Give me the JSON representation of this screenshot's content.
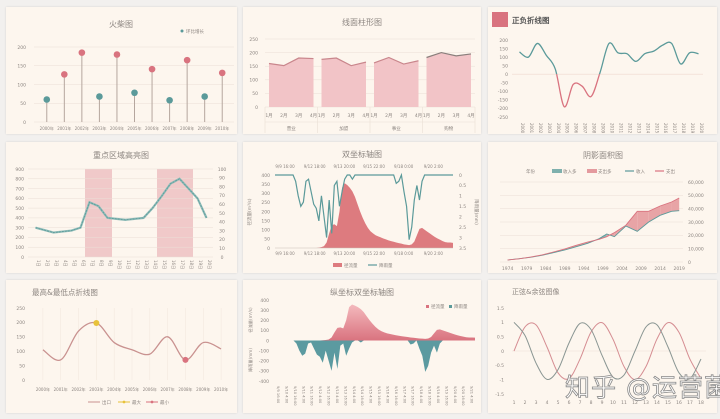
{
  "colors": {
    "pink": "#d9737f",
    "teal": "#5b9a9a",
    "area": "#f2c4c7",
    "grid": "#eadfd6",
    "text": "#8c8580",
    "gold": "#e8c23a"
  },
  "watermark": "知乎 @运营菌",
  "charts": [
    {
      "type": "bar",
      "title": "火柴图",
      "legend": "环比增长",
      "categories": [
        "2000年",
        "2001年",
        "2002年",
        "2003年",
        "2004年",
        "2005年",
        "2006年",
        "2007年",
        "2008年",
        "2009年",
        "2010年"
      ],
      "values": [
        60,
        127,
        185,
        68,
        180,
        78,
        141,
        58,
        165,
        68,
        131
      ],
      "ylim": [
        0,
        200
      ],
      "yticks": [
        0,
        50,
        100,
        150,
        200
      ]
    },
    {
      "type": "area",
      "title": "线面柱形图",
      "groups": [
        "营业",
        "加盟",
        "事业",
        "购物"
      ],
      "months": [
        "1月",
        "2月",
        "3月",
        "4月"
      ],
      "values": [
        [
          160,
          152,
          180,
          178
        ],
        [
          175,
          180,
          152,
          165
        ],
        [
          162,
          182,
          158,
          170
        ],
        [
          182,
          200,
          188,
          195
        ]
      ],
      "ylim": [
        0,
        250
      ],
      "yticks": [
        0,
        50,
        100,
        150,
        200,
        250
      ]
    },
    {
      "type": "line",
      "title": "正负折线图",
      "categories": [
        "2000",
        "2001",
        "2002",
        "2003",
        "2004",
        "2005",
        "2006",
        "2007",
        "2008",
        "2009",
        "2010",
        "2011",
        "2012",
        "2013",
        "2014",
        "2015",
        "2016",
        "2017",
        "2018",
        "2019",
        "2020"
      ],
      "values": [
        130,
        100,
        180,
        110,
        30,
        -190,
        -60,
        -70,
        -130,
        10,
        180,
        125,
        120,
        75,
        120,
        135,
        170,
        180,
        60,
        125,
        120
      ],
      "ylim": [
        -250,
        200
      ],
      "yticks": [
        -250,
        -200,
        -150,
        -100,
        -50,
        0,
        50,
        100,
        150,
        200
      ]
    },
    {
      "type": "line",
      "title": "重点区域高亮图",
      "categories": [
        "1日",
        "2日",
        "3日",
        "4日",
        "5日",
        "6日",
        "7日",
        "8日",
        "9日",
        "10日",
        "11日",
        "12日",
        "13日",
        "14日",
        "15日",
        "16日",
        "17日",
        "18日",
        "19日",
        "20日"
      ],
      "values": [
        300,
        275,
        250,
        260,
        270,
        300,
        560,
        520,
        400,
        390,
        380,
        390,
        400,
        500,
        620,
        750,
        800,
        700,
        600,
        400
      ],
      "highlights": [
        [
          6,
          8
        ],
        [
          14,
          17
        ]
      ],
      "ylim": [
        0,
        900
      ],
      "yticks": [
        0,
        100,
        200,
        300,
        400,
        500,
        600,
        700,
        800,
        900
      ],
      "y2ticks": [
        0,
        10,
        20,
        30,
        40,
        50,
        60,
        70,
        80,
        90,
        100
      ]
    },
    {
      "type": "area",
      "title": "双坐标轴图",
      "xticks": [
        "9/9 16:00",
        "9/12 18:00",
        "9/13 20:00",
        "9/15 22:00",
        "9/18 0:00",
        "9/20 2:00"
      ],
      "ylabel": "径流量(m³/s)",
      "y2label": "降雨量(mm)",
      "legend": [
        "径流量",
        "降雨量"
      ],
      "yticks": [
        0,
        50,
        100,
        150,
        200,
        250,
        300,
        350,
        400
      ],
      "y2ticks": [
        0,
        0.5,
        1,
        1.5,
        2,
        2.5,
        3,
        3.5
      ],
      "runoff": [
        0,
        0,
        0,
        0,
        0,
        0,
        0,
        0,
        0,
        0,
        0,
        0,
        0,
        0,
        0,
        0,
        0,
        2,
        5,
        10,
        30,
        80,
        125,
        130,
        120,
        200,
        330,
        355,
        345,
        330,
        310,
        280,
        240,
        200,
        165,
        135,
        110,
        92,
        80,
        70,
        64,
        58,
        52,
        47,
        42,
        38,
        34,
        30,
        27,
        24,
        20,
        18,
        16,
        20,
        35,
        70,
        105,
        110,
        100,
        90,
        80,
        70,
        60,
        52,
        45,
        38,
        32,
        30,
        30,
        28
      ],
      "rainfall": [
        0,
        0,
        0,
        0,
        0,
        0,
        0,
        0,
        0.3,
        1.0,
        1.5,
        1.3,
        0.3,
        0.2,
        0.8,
        1.4,
        1.6,
        2.2,
        1.0,
        2.0,
        3.0,
        1.2,
        2.8,
        0.5,
        0.3,
        1.5,
        0.8,
        0.2,
        0,
        0,
        0.2,
        0,
        0,
        0,
        0,
        0,
        0,
        0,
        0,
        0,
        0,
        0,
        0,
        0,
        0,
        0,
        0,
        0.4,
        0.3,
        0,
        0.8,
        1.5,
        3.1,
        2.5,
        1.2,
        0.5,
        1.2,
        0.3,
        0,
        0,
        0,
        0,
        0,
        0,
        0,
        0,
        0,
        0,
        0,
        0
      ]
    },
    {
      "type": "area",
      "title": "阴影面积图",
      "legend": [
        "年份",
        "收入多",
        "支出多",
        "收入",
        "支出"
      ],
      "xticks": [
        "1974",
        "1979",
        "1984",
        "1989",
        "1994",
        "1999",
        "2004",
        "2009",
        "2014",
        "2019"
      ],
      "x": [
        1974,
        1977,
        1980,
        1983,
        1986,
        1989,
        1992,
        1995,
        1998,
        2000,
        2002,
        2005,
        2008,
        2011,
        2014,
        2017,
        2019
      ],
      "income": [
        1500,
        2500,
        3500,
        5000,
        7000,
        9000,
        11500,
        14000,
        17500,
        21000,
        19000,
        27000,
        23000,
        30000,
        35000,
        38000,
        38500
      ],
      "expense": [
        1500,
        2400,
        3700,
        5300,
        7500,
        9800,
        12500,
        15000,
        17000,
        19000,
        22000,
        27500,
        38000,
        38000,
        42000,
        45000,
        48000
      ],
      "yticks": [
        "0",
        "10,000",
        "20,000",
        "30,000",
        "40,000",
        "50,000",
        "60,000"
      ],
      "ylim": [
        0,
        60000
      ]
    },
    {
      "type": "line",
      "title": "最高&最低点折线图",
      "legend": [
        "出口",
        "最大",
        "最小"
      ],
      "categories": [
        "2000年",
        "2001年",
        "2002年",
        "2003年",
        "2004年",
        "2005年",
        "2006年",
        "2007年",
        "2008年",
        "2009年",
        "2010年"
      ],
      "values": [
        105,
        70,
        170,
        198,
        130,
        105,
        90,
        150,
        70,
        130,
        108
      ],
      "max_index": 3,
      "min_index": 8,
      "ylim": [
        0,
        250
      ],
      "yticks": [
        0,
        50,
        100,
        150,
        200,
        250
      ]
    },
    {
      "type": "area",
      "title": "纵坐标双坐标轴图",
      "legend": [
        "径流量",
        "降雨量"
      ],
      "ylabel_top": "径流量(m³/s)",
      "ylabel_bottom": "降雨量(mm)",
      "yticks": [
        400,
        300,
        200,
        100,
        0,
        -100,
        -200,
        -300,
        -400
      ],
      "ylim": [
        -400,
        400
      ],
      "rain_scale": -100,
      "xticks": [
        "9/9 16:00",
        "9/10 4:00",
        "9/10 16:00",
        "9/11 4:00",
        "9/11 16:00",
        "9/12 4:00",
        "9/12 16:00",
        "9/13 4:00",
        "9/13 16:00",
        "9/14 4:00",
        "9/14 16:00",
        "9/15 4:00",
        "9/15 16:00",
        "9/16 4:00",
        "9/16 16:00",
        "9/17 4:00",
        "9/17 16:00",
        "9/18 4:00",
        "9/18 16:00",
        "9/19 4:00",
        "9/19 16:00",
        "9/20 4:00",
        "9/20 16:00",
        "9/21 4:00"
      ]
    },
    {
      "type": "line",
      "title": "正弦&余弦图像",
      "x": [
        1,
        2,
        3,
        4,
        5,
        6,
        7,
        8,
        9,
        10,
        11,
        12,
        13,
        14,
        15,
        16,
        17,
        18
      ],
      "sin": [
        0,
        0.84,
        0.91,
        0.14,
        -0.76,
        -0.96,
        -0.28,
        0.66,
        0.99,
        0.41,
        -0.54,
        -1.0,
        -0.54,
        0.42,
        0.99,
        0.65,
        -0.29,
        -0.96
      ],
      "cos": [
        1,
        0.54,
        -0.42,
        -0.99,
        -0.65,
        0.28,
        0.96,
        0.75,
        -0.15,
        -0.91,
        -0.84,
        0.0,
        0.84,
        0.91,
        0.14,
        -0.76,
        -0.96,
        -0.28
      ],
      "ylim": [
        -1.5,
        1.5
      ],
      "yticks": [
        -1.5,
        -1,
        -0.5,
        0,
        0.5,
        1,
        1.5
      ]
    }
  ]
}
